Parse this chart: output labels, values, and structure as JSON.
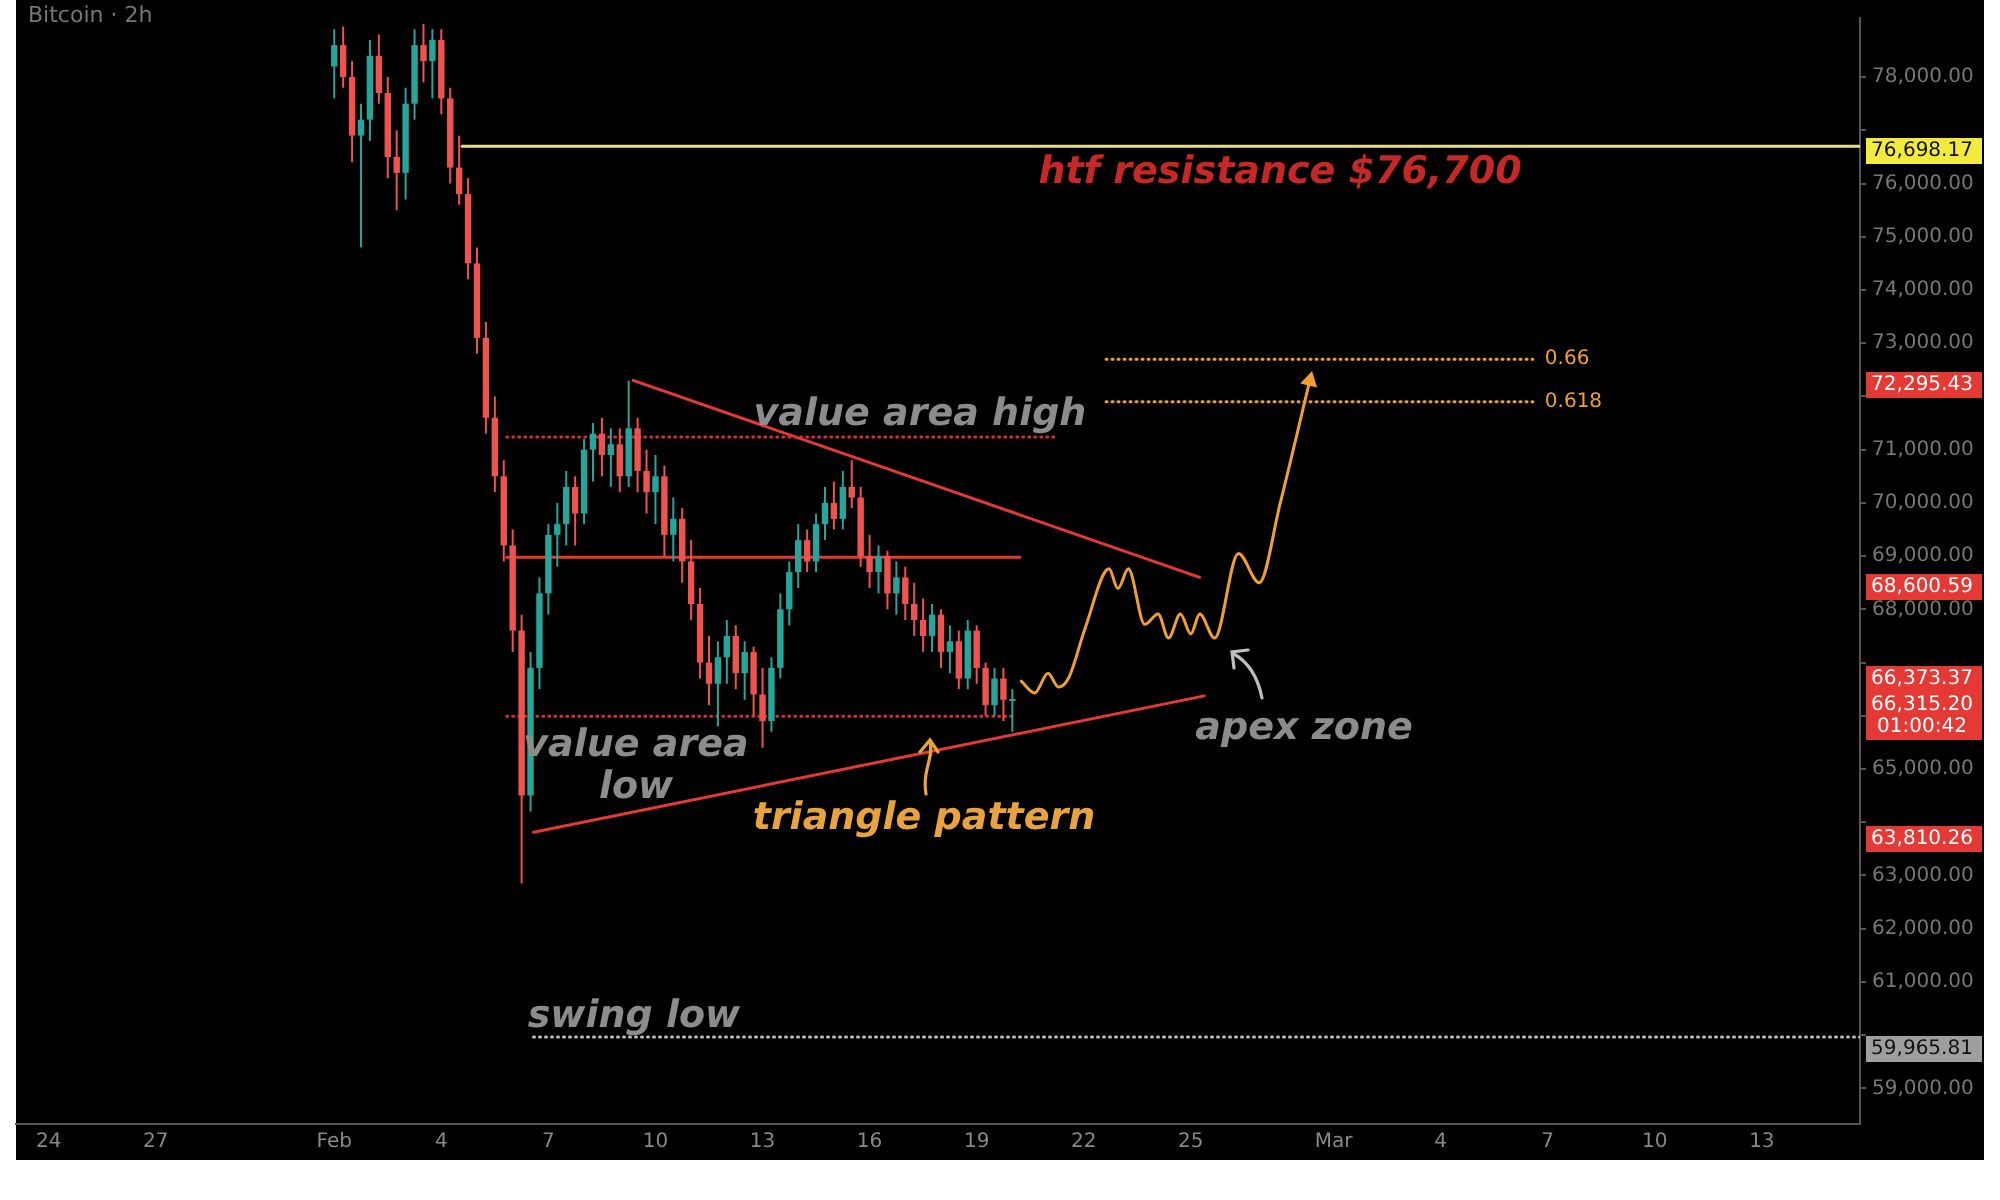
{
  "chart_data": {
    "type": "candlestick",
    "title": "Bitcoin · 2h",
    "x": [
      "--02-01T00:00",
      "--02-01T06:00",
      "--02-01T12:00",
      "--02-01T18:00",
      "--02-02T00:00",
      "--02-02T06:00",
      "--02-02T12:00",
      "--02-02T18:00",
      "--02-03T00:00",
      "--02-03T06:00",
      "--02-03T12:00",
      "--02-03T18:00",
      "--02-04T00:00",
      "--02-04T06:00",
      "--02-04T12:00",
      "--02-04T18:00",
      "--02-05T00:00",
      "--02-05T06:00",
      "--02-05T12:00",
      "--02-05T18:00",
      "--02-06T00:00",
      "--02-06T06:00",
      "--02-06T12:00",
      "--02-06T18:00",
      "--02-07T00:00",
      "--02-07T06:00",
      "--02-07T12:00",
      "--02-07T18:00",
      "--02-08T00:00",
      "--02-08T06:00",
      "--02-08T12:00",
      "--02-08T18:00",
      "--02-09T00:00",
      "--02-09T06:00",
      "--02-09T12:00",
      "--02-09T18:00",
      "--02-10T00:00",
      "--02-10T06:00",
      "--02-10T12:00",
      "--02-10T18:00",
      "--02-11T00:00",
      "--02-11T06:00",
      "--02-11T12:00",
      "--02-11T18:00",
      "--02-12T00:00",
      "--02-12T06:00",
      "--02-12T12:00",
      "--02-12T18:00",
      "--02-13T00:00",
      "--02-13T06:00",
      "--02-13T12:00",
      "--02-13T18:00",
      "--02-14T00:00",
      "--02-14T06:00",
      "--02-14T12:00",
      "--02-14T18:00",
      "--02-15T00:00",
      "--02-15T06:00",
      "--02-15T12:00",
      "--02-15T18:00",
      "--02-16T00:00",
      "--02-16T06:00",
      "--02-16T12:00",
      "--02-16T18:00",
      "--02-17T00:00",
      "--02-17T06:00",
      "--02-17T12:00",
      "--02-17T18:00",
      "--02-18T00:00",
      "--02-18T06:00",
      "--02-18T12:00",
      "--02-18T18:00",
      "--02-19T00:00",
      "--02-19T06:00",
      "--02-19T12:00",
      "--02-19T18:00",
      "--02-20T00:00"
    ],
    "ohlc": [
      [
        78200,
        78900,
        77600,
        78600
      ],
      [
        78600,
        78950,
        77800,
        78000
      ],
      [
        78000,
        78300,
        76400,
        76900
      ],
      [
        76900,
        77500,
        74800,
        77200
      ],
      [
        77200,
        78700,
        76800,
        78400
      ],
      [
        78400,
        78800,
        77500,
        77700
      ],
      [
        77700,
        78000,
        76100,
        76500
      ],
      [
        76500,
        77000,
        75500,
        76200
      ],
      [
        76200,
        77800,
        75700,
        77500
      ],
      [
        77500,
        78900,
        77200,
        78600
      ],
      [
        78600,
        79000,
        77900,
        78300
      ],
      [
        78300,
        78900,
        77600,
        78700
      ],
      [
        78700,
        78900,
        77300,
        77600
      ],
      [
        77600,
        77800,
        76000,
        76300
      ],
      [
        76300,
        76900,
        75600,
        75800
      ],
      [
        75800,
        76100,
        74200,
        74500
      ],
      [
        74500,
        74800,
        72800,
        73100
      ],
      [
        73100,
        73400,
        71300,
        71600
      ],
      [
        71600,
        72000,
        70200,
        70500
      ],
      [
        70500,
        70800,
        68900,
        69200
      ],
      [
        69200,
        69500,
        67200,
        67600
      ],
      [
        67600,
        67900,
        62850,
        64500
      ],
      [
        64500,
        67200,
        64200,
        66900
      ],
      [
        66900,
        68600,
        66500,
        68300
      ],
      [
        68300,
        69600,
        67900,
        69400
      ],
      [
        69400,
        70000,
        68800,
        69600
      ],
      [
        69600,
        70600,
        69200,
        70300
      ],
      [
        70300,
        70500,
        69200,
        69800
      ],
      [
        69800,
        71200,
        69600,
        71000
      ],
      [
        71000,
        71500,
        70400,
        71300
      ],
      [
        71300,
        71600,
        70500,
        70900
      ],
      [
        70900,
        71400,
        70300,
        71100
      ],
      [
        71100,
        71400,
        70200,
        70500
      ],
      [
        70500,
        72300,
        70300,
        71400
      ],
      [
        71400,
        71600,
        70200,
        70600
      ],
      [
        70600,
        71000,
        69800,
        70200
      ],
      [
        70200,
        70900,
        69600,
        70500
      ],
      [
        70500,
        70700,
        69000,
        69400
      ],
      [
        69400,
        70100,
        68900,
        69700
      ],
      [
        69700,
        69900,
        68500,
        68900
      ],
      [
        68900,
        69300,
        67800,
        68100
      ],
      [
        68100,
        68400,
        66700,
        67000
      ],
      [
        67000,
        67500,
        66200,
        66600
      ],
      [
        66600,
        67400,
        65800,
        67100
      ],
      [
        67100,
        67800,
        66600,
        67500
      ],
      [
        67500,
        67700,
        66500,
        66800
      ],
      [
        66800,
        67400,
        66300,
        67200
      ],
      [
        67200,
        67300,
        66000,
        66400
      ],
      [
        66400,
        66900,
        65400,
        65900
      ],
      [
        65900,
        67100,
        65700,
        66900
      ],
      [
        66900,
        68300,
        66700,
        68000
      ],
      [
        68000,
        68900,
        67700,
        68700
      ],
      [
        68700,
        69600,
        68400,
        69300
      ],
      [
        69300,
        69500,
        68700,
        68900
      ],
      [
        68900,
        69800,
        68700,
        69600
      ],
      [
        69600,
        70300,
        69300,
        70000
      ],
      [
        70000,
        70400,
        69500,
        69700
      ],
      [
        69700,
        70600,
        69500,
        70300
      ],
      [
        70300,
        70800,
        69900,
        70100
      ],
      [
        70100,
        70300,
        68800,
        69000
      ],
      [
        69000,
        69400,
        68400,
        68700
      ],
      [
        68700,
        69200,
        68300,
        69000
      ],
      [
        69000,
        69100,
        68000,
        68300
      ],
      [
        68300,
        68900,
        67900,
        68600
      ],
      [
        68600,
        68800,
        67800,
        68100
      ],
      [
        68100,
        68500,
        67500,
        67800
      ],
      [
        67800,
        68200,
        67200,
        67500
      ],
      [
        67500,
        68100,
        67200,
        67900
      ],
      [
        67900,
        68000,
        66900,
        67200
      ],
      [
        67200,
        67700,
        66800,
        67400
      ],
      [
        67400,
        67600,
        66500,
        66700
      ],
      [
        66700,
        67800,
        66500,
        67600
      ],
      [
        67600,
        67700,
        66600,
        66900
      ],
      [
        66900,
        67000,
        66000,
        66200
      ],
      [
        66200,
        66900,
        66000,
        66700
      ],
      [
        66700,
        66900,
        65900,
        66300
      ],
      [
        66300,
        66500,
        65700,
        66315.2
      ]
    ],
    "series": [
      {
        "type": "line",
        "x": [
          "--02-04T14:00",
          "--03-15T18:00"
        ],
        "values": [
          76698.17,
          76698.17
        ],
        "color": "#e6e08c",
        "line_style": "solid"
      },
      {
        "type": "line",
        "x": [
          "--02-06T14:00",
          "--03-15T18:00"
        ],
        "values": [
          59965.81,
          59965.81
        ],
        "color": "#bdbdbd",
        "line_style": "dotted"
      },
      {
        "type": "line",
        "x": [
          "--02-05T20:00",
          "--02-21T05:00"
        ],
        "values": [
          71240,
          71240
        ],
        "color": "#d32f2f",
        "line_style": "dotted"
      },
      {
        "type": "line",
        "x": [
          "--02-05T20:00",
          "--02-20T02:00"
        ],
        "values": [
          65990,
          65990
        ],
        "color": "#d32f2f",
        "line_style": "dotted"
      },
      {
        "type": "line",
        "x": [
          "--02-05T20:00",
          "--02-20T05:00"
        ],
        "values": [
          68980,
          68980
        ],
        "color": "#e53935",
        "line_style": "solid"
      },
      {
        "type": "line",
        "x": [
          "--02-09T09:00",
          "--02-25T06:00"
        ],
        "values": [
          72300,
          68600.59
        ],
        "color": "#e53935",
        "line_style": "solid"
      },
      {
        "type": "line",
        "x": [
          "--02-06T14:00",
          "--02-25T09:00"
        ],
        "values": [
          63810.26,
          66373.37
        ],
        "color": "#e53935",
        "line_style": "solid"
      },
      {
        "type": "line",
        "x": [
          "--02-20T06:00",
          "--02-20T15:00",
          "--02-21T00:00",
          "--02-21T07:00",
          "--02-21T14:00",
          "--02-22T01:00",
          "--02-22T17:00",
          "--02-22T23:00",
          "--02-23T06:00",
          "--02-23T17:00",
          "--02-24T02:00",
          "--02-24T09:00",
          "--02-24T17:00",
          "--02-25T00:00",
          "--02-25T06:00",
          "--02-25T16:00",
          "--02-26T08:00",
          "--02-26T22:00",
          "--02-27T12:00",
          "--02-28T08:00"
        ],
        "values": [
          66650,
          66430,
          66800,
          66540,
          66720,
          67650,
          68760,
          68390,
          68760,
          67720,
          67910,
          67460,
          67910,
          67540,
          67910,
          67460,
          69050,
          68500,
          69980,
          72295.43
        ],
        "color": "#f0a030",
        "line_style": "solid"
      },
      {
        "type": "line",
        "name": "0.66",
        "x": [
          "--02-22T15:00",
          "--03-06T14:00"
        ],
        "values": [
          72700,
          72700
        ],
        "color": "#f0a030",
        "line_style": "dotted"
      },
      {
        "type": "line",
        "name": "0.618",
        "x": [
          "--02-22T15:00",
          "--03-06T14:00"
        ],
        "values": [
          71900,
          71900
        ],
        "color": "#f0a030",
        "line_style": "dotted"
      }
    ],
    "annotations": [
      "htf resistance $76,700",
      "value area high",
      "value area\nlow",
      "triangle pattern",
      "apex zone",
      "swing low",
      "76,698.17",
      "72,295.43",
      "68,600.59",
      "66,373.37",
      "66,315.20\n01:00:42",
      "63,810.26",
      "59,965.81"
    ],
    "xlim": [
      "--01-23T02:00",
      "--03-15T18:00"
    ],
    "xticks": [
      {
        "value": "--01-24",
        "label": "24"
      },
      {
        "value": "--01-27",
        "label": "27"
      },
      {
        "value": "--02-01",
        "label": "Feb"
      },
      {
        "value": "--02-04",
        "label": "4"
      },
      {
        "value": "--02-07",
        "label": "7"
      },
      {
        "value": "--02-10",
        "label": "10"
      },
      {
        "value": "--02-13",
        "label": "13"
      },
      {
        "value": "--02-16",
        "label": "16"
      },
      {
        "value": "--02-19",
        "label": "19"
      },
      {
        "value": "--02-22",
        "label": "22"
      },
      {
        "value": "--02-25",
        "label": "25"
      },
      {
        "value": "--03-01",
        "label": "Mar"
      },
      {
        "value": "--03-04",
        "label": "4"
      },
      {
        "value": "--03-07",
        "label": "7"
      },
      {
        "value": "--03-10",
        "label": "10"
      },
      {
        "value": "--03-13",
        "label": "13"
      }
    ],
    "ylim": [
      58330,
      79110
    ],
    "yticks": [
      {
        "value": 59000,
        "label": "59,000.00"
      },
      {
        "value": 60000,
        "label": null
      },
      {
        "value": 61000,
        "label": "61,000.00"
      },
      {
        "value": 62000,
        "label": "62,000.00"
      },
      {
        "value": 63000,
        "label": "63,000.00"
      },
      {
        "value": 64000,
        "label": null
      },
      {
        "value": 65000,
        "label": "65,000.00"
      },
      {
        "value": 66000,
        "label": null
      },
      {
        "value": 67000,
        "label": null
      },
      {
        "value": 68000,
        "label": "68,000.00"
      },
      {
        "value": 69000,
        "label": "69,000.00"
      },
      {
        "value": 70000,
        "label": "70,000.00"
      },
      {
        "value": 71000,
        "label": "71,000.00"
      },
      {
        "value": 72000,
        "label": null
      },
      {
        "value": 73000,
        "label": "73,000.00"
      },
      {
        "value": 74000,
        "label": "74,000.00"
      },
      {
        "value": 75000,
        "label": "75,000.00"
      },
      {
        "value": 76000,
        "label": "76,000.00"
      },
      {
        "value": 77000,
        "label": null
      },
      {
        "value": 78000,
        "label": "78,000.00"
      }
    ],
    "grid": false,
    "legend": false
  }
}
